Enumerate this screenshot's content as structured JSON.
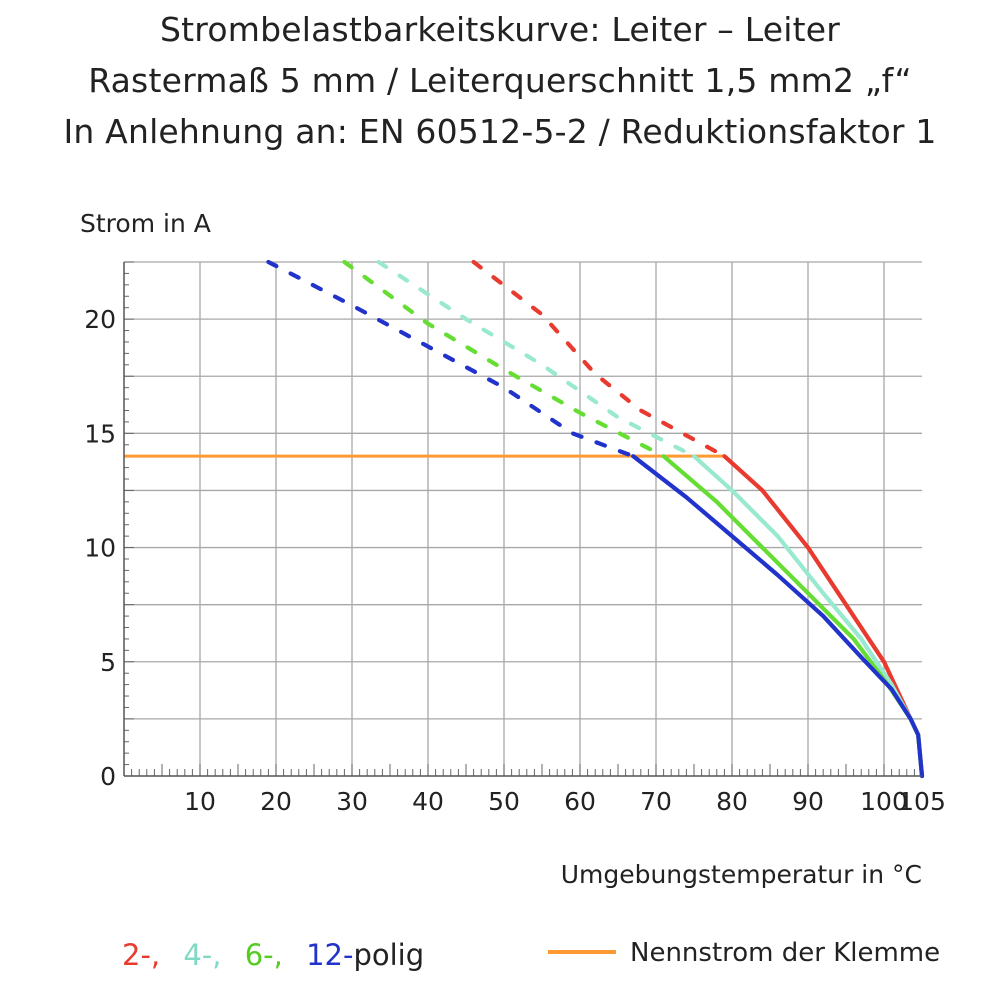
{
  "chart_data": {
    "type": "line",
    "title": [
      "Strombelastbarkeitskurve: Leiter – Leiter",
      "Rastermaß 5 mm / Leiterquerschnitt 1,5 mm2 „f“",
      "In Anlehnung an: EN 60512-5-2 / Reduktionsfaktor 1"
    ],
    "ylabel": "Strom in A",
    "xlabel": "Umgebungstemperatur in °C",
    "xlim": [
      0,
      105
    ],
    "ylim": [
      0,
      22.5
    ],
    "xticks": [
      10,
      20,
      30,
      40,
      50,
      60,
      70,
      80,
      90,
      100,
      105
    ],
    "yticks": [
      0,
      5,
      10,
      15,
      20
    ],
    "grid": true,
    "legend": {
      "series_labels": [
        "2-,",
        "4-,",
        "6-,",
        "12-"
      ],
      "series_suffix": "polig",
      "rated_label": "Nennstrom der Klemme",
      "placement": "bottom"
    },
    "rated_current": {
      "value": 14,
      "x_start": 0,
      "x_end": 79,
      "color": "#ff9933"
    },
    "series": [
      {
        "name": "2-,",
        "color": "#e83a2e",
        "dashed": [
          [
            46,
            22.5
          ],
          [
            55,
            20.2
          ],
          [
            62,
            17.6
          ],
          [
            68,
            16.0
          ],
          [
            79,
            14.0
          ]
        ],
        "solid": [
          [
            79,
            14.0
          ],
          [
            84,
            12.5
          ],
          [
            90,
            10.0
          ],
          [
            95,
            7.5
          ],
          [
            100,
            5.0
          ],
          [
            103.5,
            2.5
          ],
          [
            104.5,
            1.8
          ],
          [
            105,
            0
          ]
        ]
      },
      {
        "name": "4-,",
        "color": "#99e8d0",
        "dashed": [
          [
            33.5,
            22.5
          ],
          [
            45,
            20.0
          ],
          [
            55,
            18.0
          ],
          [
            65,
            15.7
          ],
          [
            75,
            14.0
          ]
        ],
        "solid": [
          [
            75,
            14.0
          ],
          [
            80,
            12.5
          ],
          [
            86,
            10.5
          ],
          [
            92,
            8.0
          ],
          [
            97,
            6.0
          ],
          [
            101,
            4.0
          ],
          [
            103.5,
            2.5
          ],
          [
            104.5,
            1.8
          ],
          [
            105,
            0
          ]
        ]
      },
      {
        "name": "6-,",
        "color": "#66dd33",
        "dashed": [
          [
            29,
            22.5
          ],
          [
            40,
            19.8
          ],
          [
            50,
            17.8
          ],
          [
            60,
            15.9
          ],
          [
            71,
            14.0
          ]
        ],
        "solid": [
          [
            71,
            14.0
          ],
          [
            78,
            12.0
          ],
          [
            84,
            10.0
          ],
          [
            90,
            8.0
          ],
          [
            96,
            6.0
          ],
          [
            100.5,
            4.0
          ],
          [
            103.5,
            2.5
          ],
          [
            104.5,
            1.8
          ],
          [
            105,
            0
          ]
        ]
      },
      {
        "name": "12-",
        "color": "#2233cc",
        "dashed": [
          [
            19,
            22.5
          ],
          [
            30,
            20.6
          ],
          [
            40,
            18.8
          ],
          [
            50,
            17.0
          ],
          [
            59,
            15.0
          ],
          [
            67,
            14.0
          ]
        ],
        "solid": [
          [
            67,
            14.0
          ],
          [
            74,
            12.2
          ],
          [
            80,
            10.5
          ],
          [
            86,
            8.8
          ],
          [
            92,
            7.0
          ],
          [
            97,
            5.2
          ],
          [
            101,
            3.8
          ],
          [
            103.5,
            2.5
          ],
          [
            104.5,
            1.8
          ],
          [
            105,
            0
          ]
        ]
      }
    ]
  }
}
